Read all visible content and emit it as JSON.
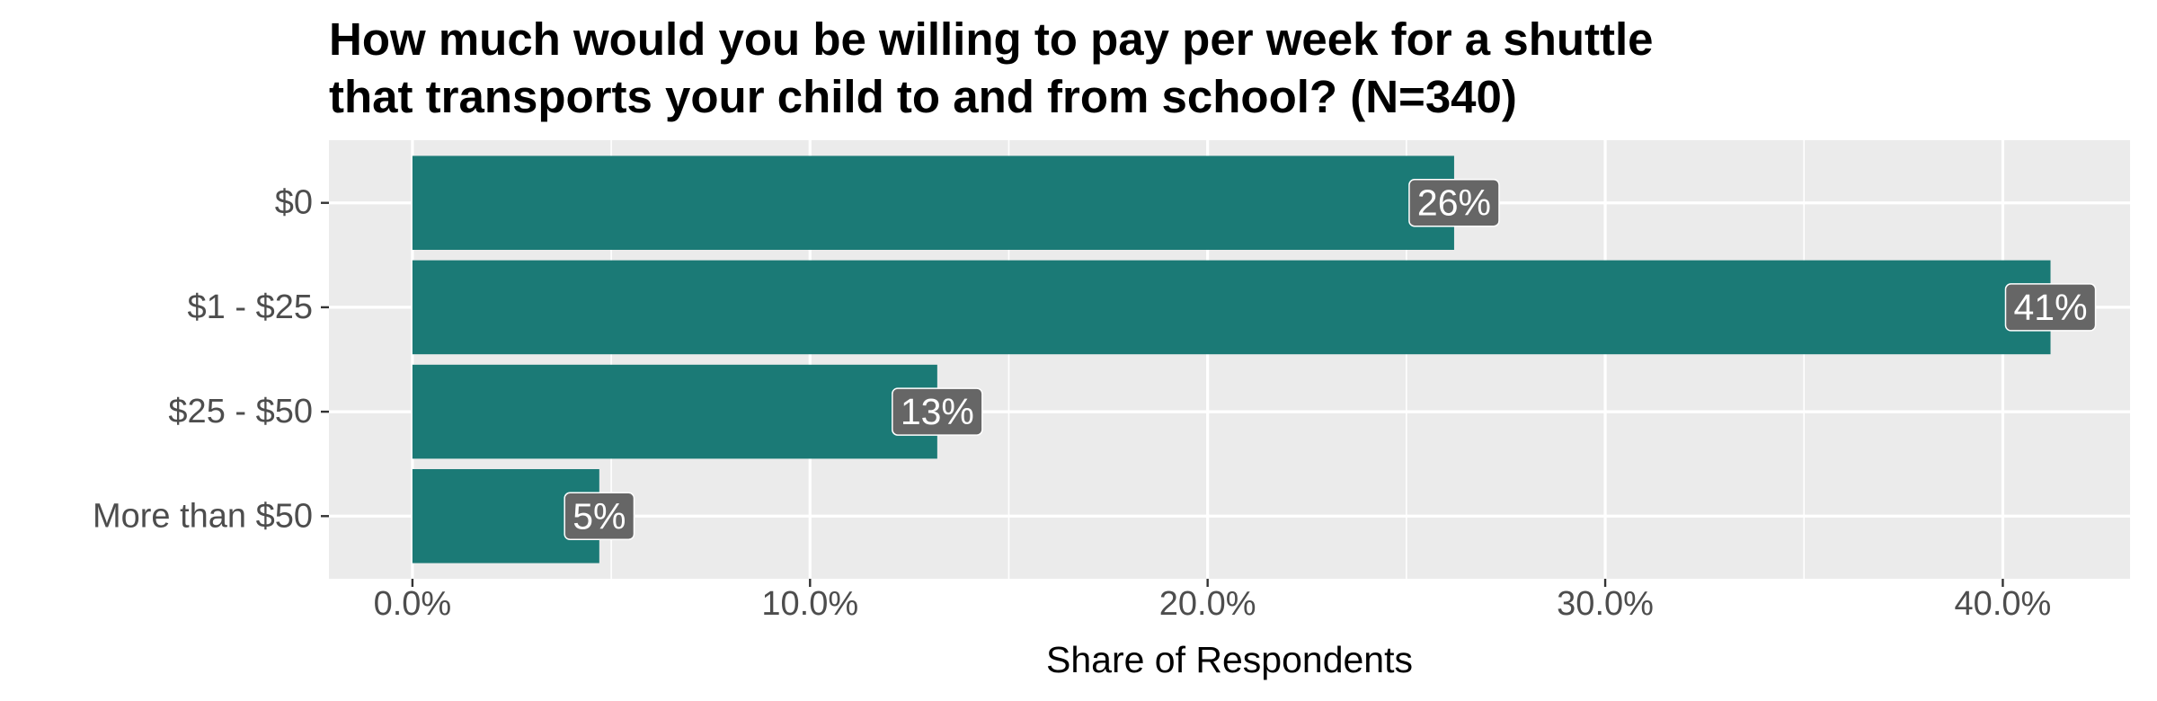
{
  "chart_data": {
    "type": "bar",
    "orientation": "horizontal",
    "title_lines": [
      "How much would you be willing to pay per week for a shuttle",
      "that transports your child to and from school? (N=340)"
    ],
    "categories": [
      "$0",
      "$1 - $25",
      "$25 - $50",
      "More than $50"
    ],
    "values": [
      26.2,
      41.2,
      13.2,
      4.7
    ],
    "data_labels": [
      "26%",
      "41%",
      "13%",
      "5%"
    ],
    "xlabel": "Share of Respondents",
    "ylabel": "",
    "xlim": [
      -2.1,
      43.2
    ],
    "x_ticks": [
      0,
      10,
      20,
      30,
      40
    ],
    "x_tick_labels": [
      "0.0%",
      "10.0%",
      "20.0%",
      "30.0%",
      "40.0%"
    ],
    "grid": true,
    "legend": "none",
    "colors": {
      "bar": "#1b7a76",
      "panel": "#ebebeb",
      "grid": "#ffffff",
      "label_box": "#666666",
      "label_text": "#ffffff"
    }
  }
}
